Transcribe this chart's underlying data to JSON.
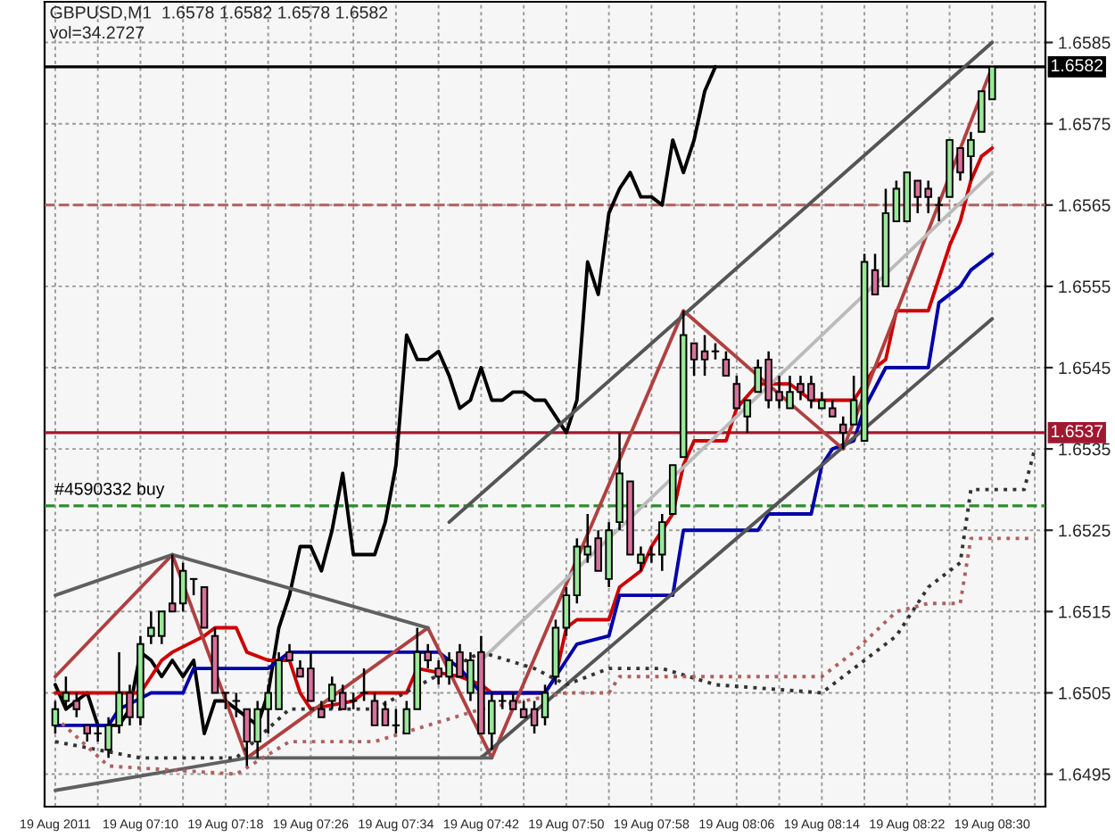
{
  "chart_data": {
    "type": "candlestick",
    "title": "GBPUSD,M1  1.6578 1.6582 1.6578 1.6582",
    "annotations": [
      "vol=34.2727"
    ],
    "x": [
      "2011-08-19T07:02",
      "2011-08-19T07:03",
      "2011-08-19T07:04",
      "2011-08-19T07:05",
      "2011-08-19T07:06",
      "2011-08-19T07:07",
      "2011-08-19T07:08",
      "2011-08-19T07:09",
      "2011-08-19T07:10",
      "2011-08-19T07:11",
      "2011-08-19T07:12",
      "2011-08-19T07:13",
      "2011-08-19T07:14",
      "2011-08-19T07:15",
      "2011-08-19T07:16",
      "2011-08-19T07:17",
      "2011-08-19T07:18",
      "2011-08-19T07:19",
      "2011-08-19T07:20",
      "2011-08-19T07:21",
      "2011-08-19T07:22",
      "2011-08-19T07:23",
      "2011-08-19T07:24",
      "2011-08-19T07:25",
      "2011-08-19T07:26",
      "2011-08-19T07:27",
      "2011-08-19T07:28",
      "2011-08-19T07:29",
      "2011-08-19T07:30",
      "2011-08-19T07:31",
      "2011-08-19T07:32",
      "2011-08-19T07:33",
      "2011-08-19T07:34",
      "2011-08-19T07:35",
      "2011-08-19T07:36",
      "2011-08-19T07:37",
      "2011-08-19T07:38",
      "2011-08-19T07:39",
      "2011-08-19T07:40",
      "2011-08-19T07:41",
      "2011-08-19T07:42",
      "2011-08-19T07:43",
      "2011-08-19T07:44",
      "2011-08-19T07:45",
      "2011-08-19T07:46",
      "2011-08-19T07:47",
      "2011-08-19T07:48",
      "2011-08-19T07:49",
      "2011-08-19T07:50",
      "2011-08-19T07:51",
      "2011-08-19T07:52",
      "2011-08-19T07:53",
      "2011-08-19T07:54",
      "2011-08-19T07:55",
      "2011-08-19T07:56",
      "2011-08-19T07:57",
      "2011-08-19T07:58",
      "2011-08-19T07:59",
      "2011-08-19T08:00",
      "2011-08-19T08:01",
      "2011-08-19T08:02",
      "2011-08-19T08:03",
      "2011-08-19T08:04",
      "2011-08-19T08:05",
      "2011-08-19T08:06",
      "2011-08-19T08:07",
      "2011-08-19T08:08",
      "2011-08-19T08:09",
      "2011-08-19T08:10",
      "2011-08-19T08:11",
      "2011-08-19T08:12",
      "2011-08-19T08:13",
      "2011-08-19T08:14",
      "2011-08-19T08:15",
      "2011-08-19T08:16",
      "2011-08-19T08:17",
      "2011-08-19T08:18",
      "2011-08-19T08:19",
      "2011-08-19T08:20",
      "2011-08-19T08:21",
      "2011-08-19T08:22",
      "2011-08-19T08:23",
      "2011-08-19T08:24",
      "2011-08-19T08:25",
      "2011-08-19T08:26",
      "2011-08-19T08:27",
      "2011-08-19T08:28",
      "2011-08-19T08:29",
      "2011-08-19T08:30"
    ],
    "ohlc": [
      [
        1.6501,
        1.6504,
        1.65,
        1.6503
      ],
      [
        1.6504,
        1.6507,
        1.6503,
        1.6505
      ],
      [
        1.6504,
        1.6505,
        1.6502,
        1.6503
      ],
      [
        1.6501,
        1.6501,
        1.6499,
        1.65
      ],
      [
        1.65,
        1.6501,
        1.6499,
        1.65
      ],
      [
        1.6498,
        1.6502,
        1.6497,
        1.6501
      ],
      [
        1.6501,
        1.651,
        1.65,
        1.6505
      ],
      [
        1.6505,
        1.6506,
        1.6501,
        1.6502
      ],
      [
        1.6502,
        1.6512,
        1.6501,
        1.6511
      ],
      [
        1.6512,
        1.6515,
        1.6511,
        1.6513
      ],
      [
        1.6512,
        1.6515,
        1.6511,
        1.6515
      ],
      [
        1.6516,
        1.6522,
        1.6515,
        1.6515
      ],
      [
        1.6516,
        1.6521,
        1.6515,
        1.652
      ],
      [
        1.6519,
        1.6519,
        1.6517,
        1.6519
      ],
      [
        1.6518,
        1.6518,
        1.6513,
        1.6513
      ],
      [
        1.6512,
        1.6513,
        1.6505,
        1.6505
      ],
      [
        1.6505,
        1.6505,
        1.6503,
        1.6505
      ],
      [
        1.6504,
        1.6505,
        1.6502,
        1.6504
      ],
      [
        1.6503,
        1.6503,
        1.6496,
        1.6499
      ],
      [
        1.6499,
        1.6504,
        1.6497,
        1.6503
      ],
      [
        1.6503,
        1.6506,
        1.65,
        1.6505
      ],
      [
        1.6503,
        1.651,
        1.6503,
        1.6509
      ],
      [
        1.651,
        1.6511,
        1.6509,
        1.6509
      ],
      [
        1.6508,
        1.6509,
        1.6507,
        1.6507
      ],
      [
        1.6508,
        1.651,
        1.6504,
        1.6504
      ],
      [
        1.6503,
        1.6504,
        1.6502,
        1.6502
      ],
      [
        1.6504,
        1.6507,
        1.6503,
        1.6506
      ],
      [
        1.6505,
        1.6506,
        1.6503,
        1.6503
      ],
      [
        1.6504,
        1.6505,
        1.6503,
        1.6504
      ],
      [
        1.6505,
        1.6508,
        1.6504,
        1.6505
      ],
      [
        1.6504,
        1.6505,
        1.6501,
        1.6501
      ],
      [
        1.6503,
        1.6504,
        1.6501,
        1.6501
      ],
      [
        1.6501,
        1.6503,
        1.65,
        1.6501
      ],
      [
        1.65,
        1.6504,
        1.65,
        1.6503
      ],
      [
        1.6503,
        1.6513,
        1.6503,
        1.651
      ],
      [
        1.651,
        1.6511,
        1.6508,
        1.6509
      ],
      [
        1.6508,
        1.6509,
        1.6506,
        1.6507
      ],
      [
        1.6507,
        1.651,
        1.6506,
        1.6509
      ],
      [
        1.651,
        1.6511,
        1.6507,
        1.6507
      ],
      [
        1.6505,
        1.651,
        1.6504,
        1.6509
      ],
      [
        1.651,
        1.6512,
        1.65,
        1.65
      ],
      [
        1.65,
        1.6505,
        1.6498,
        1.6504
      ],
      [
        1.6504,
        1.6505,
        1.6503,
        1.6504
      ],
      [
        1.6504,
        1.6505,
        1.6503,
        1.6503
      ],
      [
        1.6503,
        1.6504,
        1.6502,
        1.6502
      ],
      [
        1.6503,
        1.6504,
        1.65,
        1.6501
      ],
      [
        1.6502,
        1.6506,
        1.6501,
        1.6505
      ],
      [
        1.6507,
        1.6514,
        1.6506,
        1.6513
      ],
      [
        1.6513,
        1.6518,
        1.6512,
        1.6517
      ],
      [
        1.6517,
        1.6524,
        1.6516,
        1.6523
      ],
      [
        1.6522,
        1.6527,
        1.6521,
        1.6523
      ],
      [
        1.6524,
        1.6525,
        1.652,
        1.652
      ],
      [
        1.6519,
        1.6526,
        1.6518,
        1.6525
      ],
      [
        1.6526,
        1.6537,
        1.6525,
        1.6532
      ],
      [
        1.6531,
        1.6531,
        1.6522,
        1.6522
      ],
      [
        1.6521,
        1.6523,
        1.652,
        1.6522
      ],
      [
        1.6522,
        1.6523,
        1.6521,
        1.6522
      ],
      [
        1.6522,
        1.6527,
        1.652,
        1.6526
      ],
      [
        1.6527,
        1.6533,
        1.6527,
        1.6533
      ],
      [
        1.6534,
        1.6552,
        1.6534,
        1.6549
      ],
      [
        1.6548,
        1.6548,
        1.6544,
        1.6546
      ],
      [
        1.6547,
        1.6549,
        1.6544,
        1.6546
      ],
      [
        1.6547,
        1.6548,
        1.6546,
        1.6547
      ],
      [
        1.6546,
        1.6547,
        1.6544,
        1.6544
      ],
      [
        1.6543,
        1.6544,
        1.654,
        1.654
      ],
      [
        1.6539,
        1.6541,
        1.6537,
        1.6541
      ],
      [
        1.6542,
        1.6546,
        1.6542,
        1.6545
      ],
      [
        1.6546,
        1.6547,
        1.654,
        1.6541
      ],
      [
        1.6542,
        1.6544,
        1.654,
        1.6541
      ],
      [
        1.654,
        1.6544,
        1.654,
        1.6542
      ],
      [
        1.6543,
        1.6544,
        1.6541,
        1.6542
      ],
      [
        1.6543,
        1.6544,
        1.654,
        1.6541
      ],
      [
        1.654,
        1.6542,
        1.654,
        1.6541
      ],
      [
        1.654,
        1.6541,
        1.6539,
        1.6539
      ],
      [
        1.6538,
        1.6539,
        1.6535,
        1.6537
      ],
      [
        1.6538,
        1.6544,
        1.6538,
        1.6541
      ],
      [
        1.6536,
        1.6559,
        1.6536,
        1.6558
      ],
      [
        1.6557,
        1.6559,
        1.6554,
        1.6554
      ],
      [
        1.6555,
        1.6567,
        1.6555,
        1.6564
      ],
      [
        1.6563,
        1.6568,
        1.6563,
        1.6567
      ],
      [
        1.6563,
        1.6569,
        1.6563,
        1.6569
      ],
      [
        1.6568,
        1.6568,
        1.6564,
        1.6566
      ],
      [
        1.6567,
        1.6568,
        1.6564,
        1.6566
      ],
      [
        1.6565,
        1.6566,
        1.6563,
        1.6565
      ],
      [
        1.6566,
        1.6573,
        1.6566,
        1.6573
      ],
      [
        1.6572,
        1.6572,
        1.6568,
        1.6569
      ],
      [
        1.6571,
        1.6574,
        1.6568,
        1.6573
      ],
      [
        1.6574,
        1.6579,
        1.6574,
        1.6579
      ],
      [
        1.6578,
        1.6582,
        1.6578,
        1.6582
      ]
    ],
    "colors": [
      "#98e898",
      "#98e898",
      "#d8709a",
      "#d8709a",
      "#000000",
      "#98e898",
      "#98e898",
      "#d8709a",
      "#98e898",
      "#98e898",
      "#98e898",
      "#d8709a",
      "#98e898",
      "#000000",
      "#d8709a",
      "#d8709a",
      "#000000",
      "#000000",
      "#d8709a",
      "#98e898",
      "#98e898",
      "#98e898",
      "#d8709a",
      "#d8709a",
      "#d8709a",
      "#d8709a",
      "#98e898",
      "#d8709a",
      "#000000",
      "#000000",
      "#d8709a",
      "#d8709a",
      "#000000",
      "#98e898",
      "#98e898",
      "#d8709a",
      "#d8709a",
      "#98e898",
      "#d8709a",
      "#98e898",
      "#d8709a",
      "#98e898",
      "#000000",
      "#d8709a",
      "#d8709a",
      "#d8709a",
      "#98e898",
      "#98e898",
      "#98e898",
      "#98e898",
      "#98e898",
      "#d8709a",
      "#98e898",
      "#98e898",
      "#d8709a",
      "#98e898",
      "#000000",
      "#98e898",
      "#98e898",
      "#98e898",
      "#d8709a",
      "#d8709a",
      "#000000",
      "#d8709a",
      "#d8709a",
      "#98e898",
      "#98e898",
      "#d8709a",
      "#d8709a",
      "#98e898",
      "#d8709a",
      "#d8709a",
      "#98e898",
      "#d8709a",
      "#d8709a",
      "#98e898",
      "#98e898",
      "#d8709a",
      "#98e898",
      "#98e898",
      "#98e898",
      "#d8709a",
      "#d8709a",
      "#000000",
      "#98e898",
      "#d8709a",
      "#98e898",
      "#98e898",
      "#98e898"
    ],
    "series": [
      {
        "type": "line",
        "color": "#000000",
        "x": [
          "2011-08-19T07:02",
          "2011-08-19T07:03",
          "2011-08-19T07:04",
          "2011-08-19T07:05",
          "2011-08-19T07:06",
          "2011-08-19T07:07",
          "2011-08-19T07:08",
          "2011-08-19T07:09",
          "2011-08-19T07:10",
          "2011-08-19T07:11",
          "2011-08-19T07:12",
          "2011-08-19T07:13",
          "2011-08-19T07:14",
          "2011-08-19T07:15",
          "2011-08-19T07:16",
          "2011-08-19T07:17",
          "2011-08-19T07:18",
          "2011-08-19T07:19",
          "2011-08-19T07:20",
          "2011-08-19T07:21",
          "2011-08-19T07:22",
          "2011-08-19T07:23",
          "2011-08-19T07:24",
          "2011-08-19T07:25",
          "2011-08-19T07:26",
          "2011-08-19T07:27",
          "2011-08-19T07:28",
          "2011-08-19T07:29",
          "2011-08-19T07:30",
          "2011-08-19T07:31",
          "2011-08-19T07:32",
          "2011-08-19T07:33",
          "2011-08-19T07:34",
          "2011-08-19T07:35",
          "2011-08-19T07:36",
          "2011-08-19T07:37",
          "2011-08-19T07:38",
          "2011-08-19T07:39",
          "2011-08-19T07:40",
          "2011-08-19T07:41",
          "2011-08-19T07:42",
          "2011-08-19T07:43",
          "2011-08-19T07:44",
          "2011-08-19T07:45",
          "2011-08-19T07:46",
          "2011-08-19T07:47",
          "2011-08-19T07:48",
          "2011-08-19T07:49",
          "2011-08-19T07:50",
          "2011-08-19T07:51",
          "2011-08-19T07:52",
          "2011-08-19T07:53",
          "2011-08-19T07:54",
          "2011-08-19T07:55",
          "2011-08-19T07:56",
          "2011-08-19T07:57",
          "2011-08-19T07:58",
          "2011-08-19T07:59",
          "2011-08-19T08:00",
          "2011-08-19T08:01",
          "2011-08-19T08:02",
          "2011-08-19T08:03",
          "2011-08-19T08:04"
        ],
        "values": [
          1.6506,
          1.6503,
          1.6504,
          1.6505,
          1.6501,
          1.6501,
          1.6501,
          1.6503,
          1.651,
          1.6509,
          1.6507,
          1.6509,
          1.6507,
          1.6509,
          1.65,
          1.6504,
          1.6504,
          1.6503,
          1.6502,
          1.6501,
          1.6505,
          1.6513,
          1.6517,
          1.6523,
          1.6523,
          1.652,
          1.6525,
          1.6532,
          1.6522,
          1.6522,
          1.6522,
          1.6526,
          1.6533,
          1.6549,
          1.6546,
          1.6546,
          1.6547,
          1.6544,
          1.654,
          1.6541,
          1.6545,
          1.6541,
          1.6541,
          1.6542,
          1.6542,
          1.6541,
          1.6541,
          1.6539,
          1.6537,
          1.6541,
          1.6558,
          1.6554,
          1.6564,
          1.6567,
          1.6569,
          1.6566,
          1.6566,
          1.6565,
          1.6573,
          1.6569,
          1.6573,
          1.6579,
          1.6582
        ]
      },
      {
        "type": "line",
        "color": "#cc0000",
        "x": [
          "2011-08-19T07:02",
          "2011-08-19T07:08",
          "2011-08-19T07:10",
          "2011-08-19T07:11",
          "2011-08-19T07:12",
          "2011-08-19T07:13",
          "2011-08-19T07:16",
          "2011-08-19T07:17",
          "2011-08-19T07:19",
          "2011-08-19T07:20",
          "2011-08-19T07:22",
          "2011-08-19T07:24",
          "2011-08-19T07:25",
          "2011-08-19T07:26",
          "2011-08-19T07:30",
          "2011-08-19T07:31",
          "2011-08-19T07:35",
          "2011-08-19T07:36",
          "2011-08-19T07:40",
          "2011-08-19T07:42",
          "2011-08-19T07:43",
          "2011-08-19T07:48",
          "2011-08-19T07:49",
          "2011-08-19T07:50",
          "2011-08-19T07:51",
          "2011-08-19T07:54",
          "2011-08-19T07:55",
          "2011-08-19T07:57",
          "2011-08-19T07:58",
          "2011-08-19T08:00",
          "2011-08-19T08:01",
          "2011-08-19T08:02",
          "2011-08-19T08:05",
          "2011-08-19T08:06",
          "2011-08-19T08:08",
          "2011-08-19T08:11",
          "2011-08-19T08:13",
          "2011-08-19T08:17",
          "2011-08-19T08:19",
          "2011-08-19T08:20",
          "2011-08-19T08:21",
          "2011-08-19T08:24",
          "2011-08-19T08:25",
          "2011-08-19T08:26",
          "2011-08-19T08:27",
          "2011-08-19T08:28",
          "2011-08-19T08:29",
          "2011-08-19T08:30"
        ],
        "values": [
          1.6505,
          1.6505,
          1.6505,
          1.6507,
          1.6509,
          1.651,
          1.6512,
          1.6513,
          1.6513,
          1.651,
          1.6509,
          1.6509,
          1.6505,
          1.6503,
          1.6504,
          1.6505,
          1.6505,
          1.6508,
          1.6507,
          1.6506,
          1.6505,
          1.6505,
          1.6507,
          1.6513,
          1.6514,
          1.6514,
          1.6518,
          1.652,
          1.6523,
          1.6527,
          1.6533,
          1.6536,
          1.6536,
          1.654,
          1.6543,
          1.6543,
          1.6541,
          1.6541,
          1.6545,
          1.6546,
          1.6552,
          1.6552,
          1.6556,
          1.656,
          1.6563,
          1.6568,
          1.6571,
          1.6572
        ]
      },
      {
        "type": "line",
        "color": "#0000aa",
        "x": [
          "2011-08-19T07:02",
          "2011-08-19T07:07",
          "2011-08-19T07:08",
          "2011-08-19T07:11",
          "2011-08-19T07:14",
          "2011-08-19T07:15",
          "2011-08-19T07:22",
          "2011-08-19T07:23",
          "2011-08-19T07:24",
          "2011-08-19T07:38",
          "2011-08-19T07:40",
          "2011-08-19T07:42",
          "2011-08-19T07:48",
          "2011-08-19T07:49",
          "2011-08-19T07:51",
          "2011-08-19T07:54",
          "2011-08-19T07:55",
          "2011-08-19T08:00",
          "2011-08-19T08:01",
          "2011-08-19T08:08",
          "2011-08-19T08:09",
          "2011-08-19T08:13",
          "2011-08-19T08:14",
          "2011-08-19T08:15",
          "2011-08-19T08:17",
          "2011-08-19T08:18",
          "2011-08-19T08:20",
          "2011-08-19T08:24",
          "2011-08-19T08:25",
          "2011-08-19T08:27",
          "2011-08-19T08:28",
          "2011-08-19T08:30"
        ],
        "values": [
          1.6501,
          1.6501,
          1.6503,
          1.6505,
          1.6505,
          1.6508,
          1.6508,
          1.6509,
          1.651,
          1.651,
          1.6508,
          1.6505,
          1.6505,
          1.6507,
          1.6511,
          1.6512,
          1.6517,
          1.6517,
          1.6525,
          1.6525,
          1.6527,
          1.6527,
          1.6533,
          1.6535,
          1.6536,
          1.654,
          1.6545,
          1.6545,
          1.6553,
          1.6555,
          1.6557,
          1.6559
        ]
      },
      {
        "type": "line",
        "color": "#b04040",
        "x": [
          "2011-08-19T07:02",
          "2011-08-19T07:13",
          "2011-08-19T07:20",
          "2011-08-19T07:37",
          "2011-08-19T07:43",
          "2011-08-19T08:01",
          "2011-08-19T08:08",
          "2011-08-19T08:16",
          "2011-08-19T08:30"
        ],
        "values": [
          1.6507,
          1.6522,
          1.6497,
          1.6513,
          1.6497,
          1.6552,
          1.6544,
          1.6535,
          1.6582
        ]
      },
      {
        "type": "line",
        "color": "#555555",
        "x": [
          "2011-08-19T07:39",
          "2011-08-19T08:30"
        ],
        "values": [
          1.6526,
          1.6585
        ]
      },
      {
        "type": "line",
        "color": "#bbbbbb",
        "x": [
          "2011-08-19T07:42",
          "2011-08-19T08:30"
        ],
        "values": [
          1.6509,
          1.6569
        ]
      },
      {
        "type": "line",
        "color": "#555555",
        "x": [
          "2011-08-19T07:42",
          "2011-08-19T08:30"
        ],
        "values": [
          1.6497,
          1.6551
        ]
      },
      {
        "type": "line",
        "color": "#606060",
        "x": [
          "2011-08-19T07:02",
          "2011-08-19T07:13",
          "2011-08-19T07:37"
        ],
        "values": [
          1.6517,
          1.6522,
          1.6513
        ]
      },
      {
        "type": "line",
        "color": "#606060",
        "x": [
          "2011-08-19T07:02",
          "2011-08-19T07:20",
          "2011-08-19T07:43"
        ],
        "values": [
          1.6493,
          1.6497,
          1.6497
        ]
      },
      {
        "type": "line",
        "color": "#333333",
        "line_style": "dotted",
        "x": [
          "2011-08-19T07:02",
          "2011-08-19T07:10",
          "2011-08-19T07:19",
          "2011-08-19T07:24",
          "2011-08-19T07:32",
          "2011-08-19T07:42",
          "2011-08-19T07:47",
          "2011-08-19T07:50",
          "2011-08-19T07:54",
          "2011-08-19T07:59",
          "2011-08-19T08:04",
          "2011-08-19T08:14",
          "2011-08-19T08:17",
          "2011-08-19T08:21",
          "2011-08-19T08:24",
          "2011-08-19T08:27",
          "2011-08-19T08:28",
          "2011-08-19T08:33",
          "2011-08-19T08:34"
        ],
        "values": [
          1.6499,
          1.6497,
          1.6497,
          1.6503,
          1.6503,
          1.651,
          1.6508,
          1.6506,
          1.6508,
          1.6508,
          1.6506,
          1.6505,
          1.6508,
          1.6512,
          1.6518,
          1.6521,
          1.653,
          1.653,
          1.6535
        ]
      },
      {
        "type": "line",
        "color": "#b06060",
        "line_style": "dotted",
        "x": [
          "2011-08-19T07:02",
          "2011-08-19T07:07",
          "2011-08-19T07:19",
          "2011-08-19T07:24",
          "2011-08-19T07:32",
          "2011-08-19T07:42",
          "2011-08-19T07:50",
          "2011-08-19T07:54",
          "2011-08-19T07:55",
          "2011-08-19T08:14",
          "2011-08-19T08:17",
          "2011-08-19T08:21",
          "2011-08-19T08:24",
          "2011-08-19T08:27",
          "2011-08-19T08:28",
          "2011-08-19T08:34"
        ],
        "values": [
          1.6502,
          1.6496,
          1.6495,
          1.6499,
          1.6499,
          1.6503,
          1.6505,
          1.6505,
          1.6507,
          1.6507,
          1.651,
          1.6515,
          1.6516,
          1.6516,
          1.6524,
          1.6524
        ]
      }
    ],
    "ref_lines": [
      {
        "axis": "y",
        "value": 1.6582,
        "label": "1.6582",
        "color": "#000000",
        "line_style": "solid"
      },
      {
        "axis": "y",
        "value": 1.6565,
        "color": "#b06060",
        "line_style": "dashed"
      },
      {
        "axis": "y",
        "value": 1.6537,
        "label": "1.6537",
        "color": "#a01830",
        "line_style": "solid"
      },
      {
        "axis": "y",
        "value": 1.6528,
        "label": "#4590332 buy",
        "color": "#2e8b2e",
        "line_style": "dashed"
      }
    ],
    "xlim": [
      "2011-08-19T07:01",
      "2011-08-19T08:35"
    ],
    "xticks": [
      {
        "value": "2011-08-19T07:02",
        "label": "19 Aug 2011"
      },
      {
        "value": "2011-08-19T07:06",
        "label": null
      },
      {
        "value": "2011-08-19T07:10",
        "label": "19 Aug 07:10"
      },
      {
        "value": "2011-08-19T07:14",
        "label": null
      },
      {
        "value": "2011-08-19T07:18",
        "label": "19 Aug 07:18"
      },
      {
        "value": "2011-08-19T07:22",
        "label": null
      },
      {
        "value": "2011-08-19T07:26",
        "label": "19 Aug 07:26"
      },
      {
        "value": "2011-08-19T07:30",
        "label": null
      },
      {
        "value": "2011-08-19T07:34",
        "label": "19 Aug 07:34"
      },
      {
        "value": "2011-08-19T07:38",
        "label": null
      },
      {
        "value": "2011-08-19T07:42",
        "label": "19 Aug 07:42"
      },
      {
        "value": "2011-08-19T07:46",
        "label": null
      },
      {
        "value": "2011-08-19T07:50",
        "label": "19 Aug 07:50"
      },
      {
        "value": "2011-08-19T07:54",
        "label": null
      },
      {
        "value": "2011-08-19T07:58",
        "label": "19 Aug 07:58"
      },
      {
        "value": "2011-08-19T08:02",
        "label": null
      },
      {
        "value": "2011-08-19T08:06",
        "label": "19 Aug 08:06"
      },
      {
        "value": "2011-08-19T08:10",
        "label": null
      },
      {
        "value": "2011-08-19T08:14",
        "label": "19 Aug 08:14"
      },
      {
        "value": "2011-08-19T08:18",
        "label": null
      },
      {
        "value": "2011-08-19T08:22",
        "label": "19 Aug 08:22"
      },
      {
        "value": "2011-08-19T08:26",
        "label": null
      },
      {
        "value": "2011-08-19T08:30",
        "label": "19 Aug 08:30"
      },
      {
        "value": "2011-08-19T08:34",
        "label": null
      }
    ],
    "ylim": [
      1.6491,
      1.659
    ],
    "yticks": [
      1.6495,
      1.6505,
      1.6515,
      1.6525,
      1.6535,
      1.6545,
      1.6555,
      1.6565,
      1.6575,
      1.6585
    ],
    "grid": true
  }
}
